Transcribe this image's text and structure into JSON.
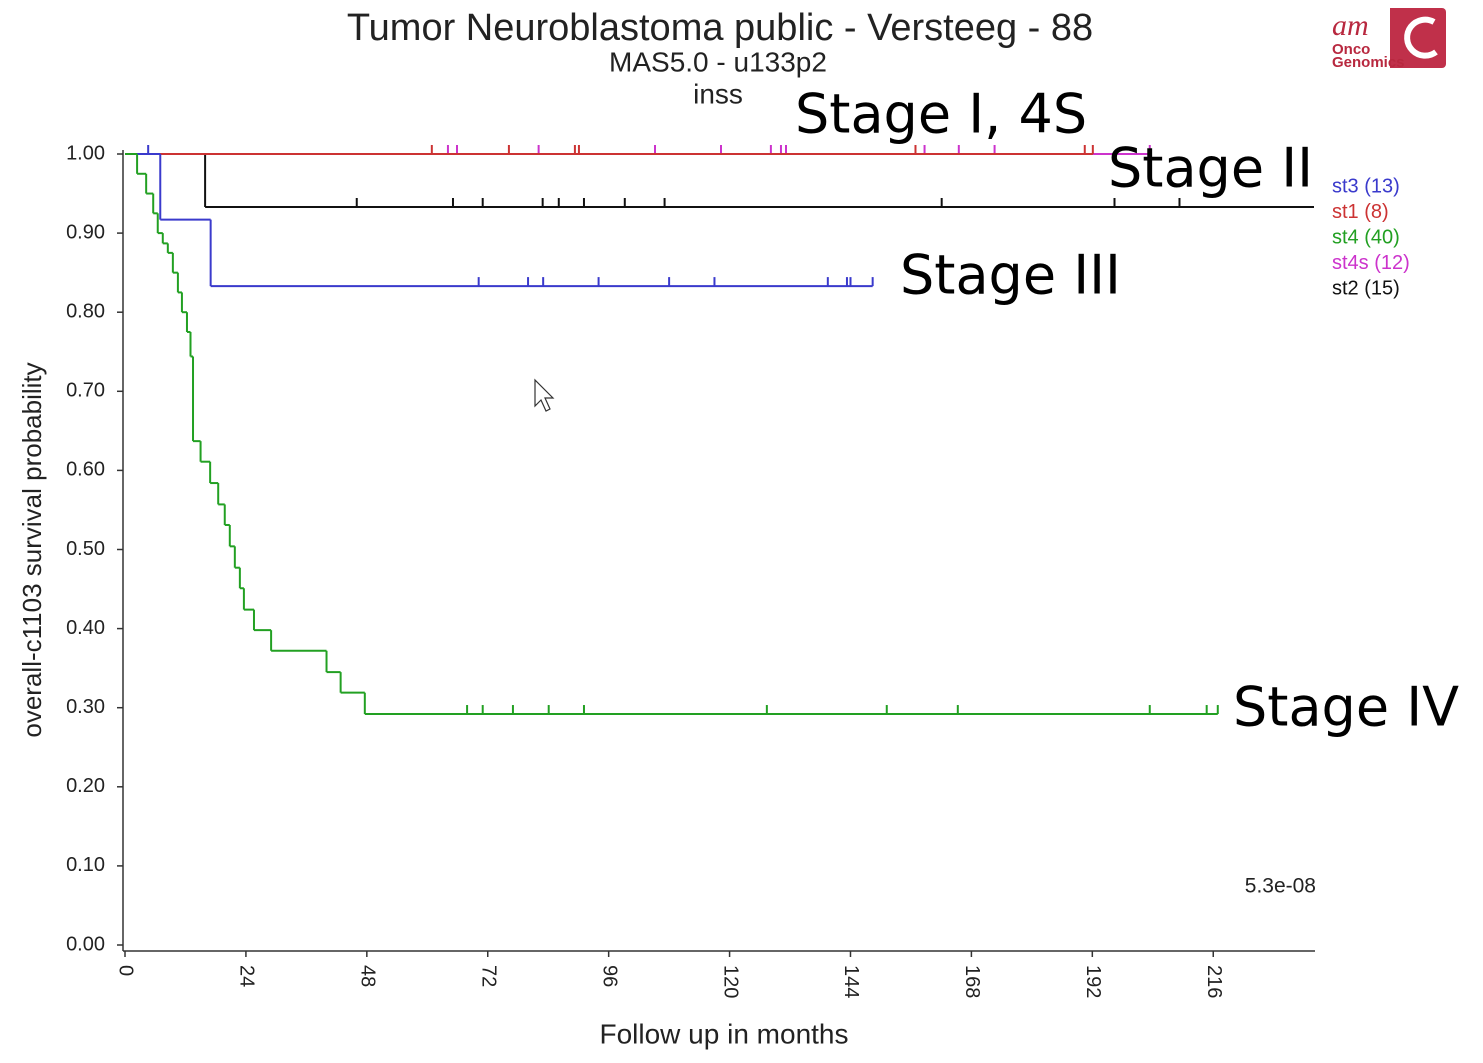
{
  "chart_data": {
    "type": "survival",
    "title": "Tumor Neuroblastoma public - Versteeg - 88",
    "subtitle": "MAS5.0 - u133p2",
    "subtitle2": "inss",
    "x_label": "Follow up in months",
    "y_label": "overall-c1103 survival probability",
    "xlim": [
      0,
      236
    ],
    "ylim": [
      0,
      1
    ],
    "xticks": [
      0,
      24,
      48,
      72,
      96,
      120,
      144,
      168,
      192,
      216
    ],
    "yticks": [
      {
        "value": 0,
        "label": "0.00"
      },
      {
        "value": 0.1,
        "label": "0.10"
      },
      {
        "value": 0.2,
        "label": "0.20"
      },
      {
        "value": 0.3,
        "label": "0.30"
      },
      {
        "value": 0.4,
        "label": "0.40"
      },
      {
        "value": 0.5,
        "label": "0.50"
      },
      {
        "value": 0.6,
        "label": "0.60"
      },
      {
        "value": 0.7,
        "label": "0.70"
      },
      {
        "value": 0.8,
        "label": "0.80"
      },
      {
        "value": 0.9,
        "label": "0.90"
      },
      {
        "value": 1,
        "label": "1.00"
      }
    ],
    "p_value": "5.3e-08",
    "series": [
      {
        "name": "st3 (13)",
        "color": "#3a3acc",
        "x": [
          0,
          7,
          17,
          148.4
        ],
        "values": [
          1,
          0.917,
          0.833,
          0.833
        ],
        "censor_x": [
          4.6,
          70.2,
          80,
          83,
          94,
          108,
          117,
          139.5,
          143.3,
          144,
          148.4
        ],
        "censor_values": [
          1,
          0.833,
          0.833,
          0.833,
          0.833,
          0.833,
          0.833,
          0.833,
          0.833,
          0.833,
          0.833
        ]
      },
      {
        "name": "st1 (8)",
        "color": "#cc3333",
        "x": [
          0,
          192.1
        ],
        "values": [
          1,
          1
        ],
        "censor_x": [
          60.9,
          76.2,
          89.3,
          90.1,
          156.9,
          190.5,
          192.1
        ],
        "censor_values": [
          1,
          1,
          1,
          1,
          1,
          1,
          1
        ]
      },
      {
        "name": "st4 (40)",
        "color": "#22a022",
        "x": [
          0,
          2.4,
          4.2,
          5.6,
          6.5,
          7.5,
          8.5,
          9.5,
          10.5,
          11.3,
          12.3,
          13,
          13.5,
          15,
          16.9,
          18.5,
          19.8,
          20.8,
          21.8,
          22.8,
          23.6,
          25.6,
          29,
          40,
          42.8,
          47.6,
          216.9
        ],
        "values": [
          1,
          0.975,
          0.95,
          0.925,
          0.9,
          0.887,
          0.875,
          0.85,
          0.825,
          0.8,
          0.775,
          0.744,
          0.637,
          0.611,
          0.584,
          0.557,
          0.531,
          0.504,
          0.477,
          0.451,
          0.424,
          0.398,
          0.372,
          0.345,
          0.319,
          0.292,
          0.292
        ],
        "censor_x": [
          67.9,
          71,
          77,
          84.1,
          91.1,
          127.4,
          151.2,
          165.3,
          203.4,
          214.7,
          216.9
        ],
        "censor_values": [
          0.292,
          0.292,
          0.292,
          0.292,
          0.292,
          0.292,
          0.292,
          0.292,
          0.292,
          0.292,
          0.292
        ]
      },
      {
        "name": "st4s (12)",
        "color": "#cc33cc",
        "x": [
          0,
          203.4
        ],
        "values": [
          1,
          1
        ],
        "censor_x": [
          64.1,
          65.9,
          82.1,
          105.2,
          118.3,
          128.2,
          130.2,
          131.2,
          158.7,
          165.5,
          172.6,
          203.4
        ],
        "censor_values": [
          1,
          1,
          1,
          1,
          1,
          1,
          1,
          1,
          1,
          1,
          1,
          1
        ]
      },
      {
        "name": "st2 (15)",
        "color": "#111111",
        "x": [
          0,
          15.9,
          236
        ],
        "values": [
          1,
          0.933,
          0.933
        ],
        "censor_x": [
          46,
          65.1,
          71,
          82.9,
          86.1,
          91.1,
          99.2,
          107.1,
          162.1,
          196.4,
          209.3
        ],
        "censor_values": [
          0.933,
          0.933,
          0.933,
          0.933,
          0.933,
          0.933,
          0.933,
          0.933,
          0.933,
          0.933,
          0.933
        ]
      }
    ],
    "annotations": [
      "Stage I, 4S",
      "Stage II",
      "Stage III",
      "Stage IV"
    ]
  },
  "logo": {
    "lines": [
      "am",
      "Onco",
      "Genomics"
    ]
  }
}
